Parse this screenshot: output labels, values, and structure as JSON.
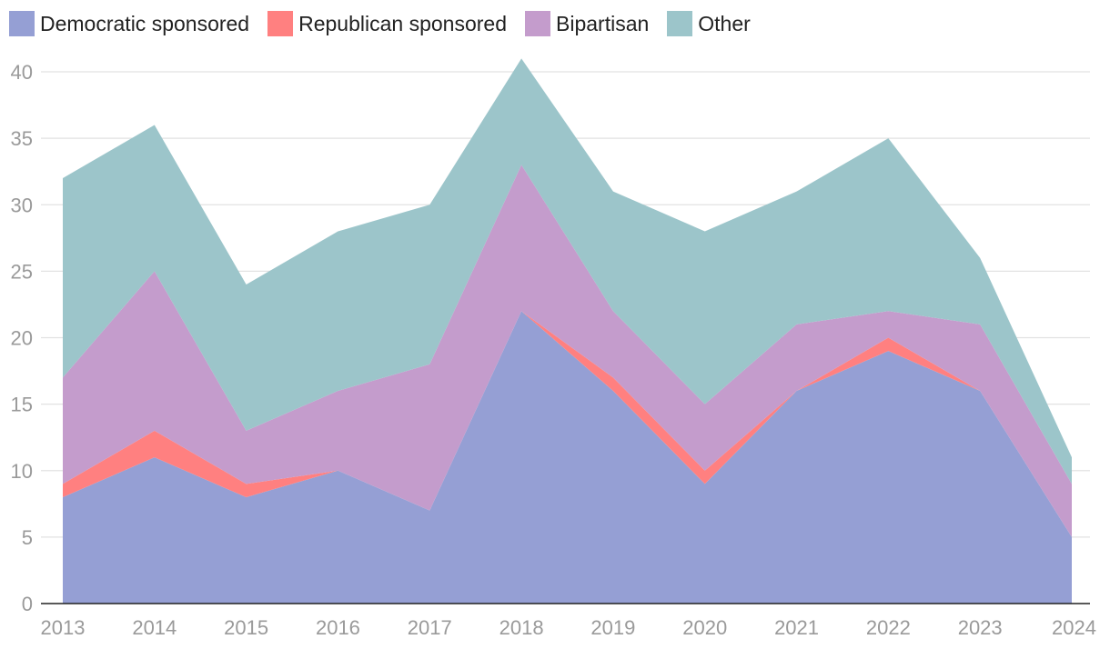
{
  "chart_data": {
    "type": "area",
    "stacked": true,
    "title": "",
    "xlabel": "",
    "ylabel": "",
    "categories": [
      "2013",
      "2014",
      "2015",
      "2016",
      "2017",
      "2018",
      "2019",
      "2020",
      "2021",
      "2022",
      "2023",
      "2024"
    ],
    "series": [
      {
        "name": "Democratic sponsored",
        "color": "#959fd4",
        "values": [
          8,
          11,
          8,
          10,
          7,
          22,
          16,
          9,
          16,
          19,
          16,
          5
        ]
      },
      {
        "name": "Republican sponsored",
        "color": "#ff8080",
        "values": [
          1,
          2,
          1,
          0,
          0,
          0,
          1,
          1,
          0,
          1,
          0,
          0
        ]
      },
      {
        "name": "Bipartisan",
        "color": "#c49ccc",
        "values": [
          8,
          12,
          4,
          6,
          11,
          11,
          5,
          5,
          5,
          2,
          5,
          4
        ]
      },
      {
        "name": "Other",
        "color": "#9cc5ca",
        "values": [
          15,
          11,
          11,
          12,
          12,
          8,
          9,
          13,
          10,
          13,
          5,
          2
        ]
      }
    ],
    "ylim": [
      0,
      40
    ],
    "yticks": [
      0,
      5,
      10,
      15,
      20,
      25,
      30,
      35,
      40
    ],
    "grid": true,
    "legend_position": "top-left"
  }
}
